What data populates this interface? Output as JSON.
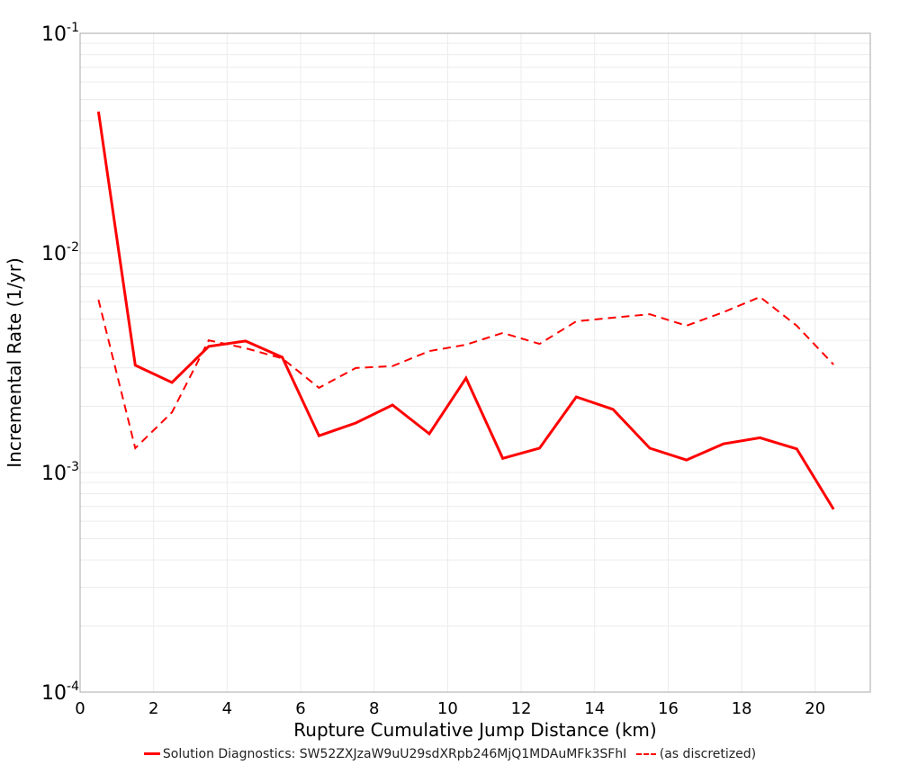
{
  "chart_data": {
    "type": "line",
    "title": "",
    "xlabel": "Rupture Cumulative Jump Distance (km)",
    "ylabel": "Incremental Rate (1/yr)",
    "xlim": [
      0,
      21.5
    ],
    "ylim": [
      0.0001,
      0.1
    ],
    "yscale": "log",
    "x_ticks": [
      0,
      2,
      4,
      6,
      8,
      10,
      12,
      14,
      16,
      18,
      20
    ],
    "y_ticks": [
      {
        "value": 0.1,
        "base": "10",
        "exp": "-1"
      },
      {
        "value": 0.01,
        "base": "10",
        "exp": "-2"
      },
      {
        "value": 0.001,
        "base": "10",
        "exp": "-3"
      },
      {
        "value": 0.0001,
        "base": "10",
        "exp": "-4"
      }
    ],
    "grid": true,
    "legend_position": "bottom",
    "x": [
      0.5,
      1.5,
      2.5,
      3.5,
      4.5,
      5.5,
      6.5,
      7.5,
      8.5,
      9.5,
      10.5,
      11.5,
      12.5,
      13.5,
      14.5,
      15.5,
      16.5,
      17.5,
      18.5,
      19.5,
      20.5
    ],
    "series": [
      {
        "name": "Solution Diagnostics: SW52ZXJzaW9uU29sdXRpb246MjQ1MDAuMFk3SFhI",
        "style": "solid",
        "color": "#ff0000",
        "values": [
          0.044,
          0.00308,
          0.00257,
          0.00375,
          0.00397,
          0.00335,
          0.00147,
          0.00168,
          0.00203,
          0.0015,
          0.00269,
          0.00116,
          0.00129,
          0.00221,
          0.00194,
          0.00129,
          0.00114,
          0.00135,
          0.00144,
          0.00128,
          0.00068
        ]
      },
      {
        "name": "(as discretized)",
        "style": "dashed",
        "color": "#ff0000",
        "values": [
          0.00612,
          0.00129,
          0.00188,
          0.004,
          0.00368,
          0.00331,
          0.00243,
          0.00299,
          0.00305,
          0.00357,
          0.00382,
          0.00432,
          0.00385,
          0.00488,
          0.00507,
          0.00526,
          0.00466,
          0.00537,
          0.0063,
          0.00466,
          0.0031
        ]
      }
    ]
  },
  "legend": {
    "solid_label": "Solution Diagnostics: SW52ZXJzaW9uU29sdXRpb246MjQ1MDAuMFk3SFhI",
    "dashed_label": "(as discretized)"
  }
}
